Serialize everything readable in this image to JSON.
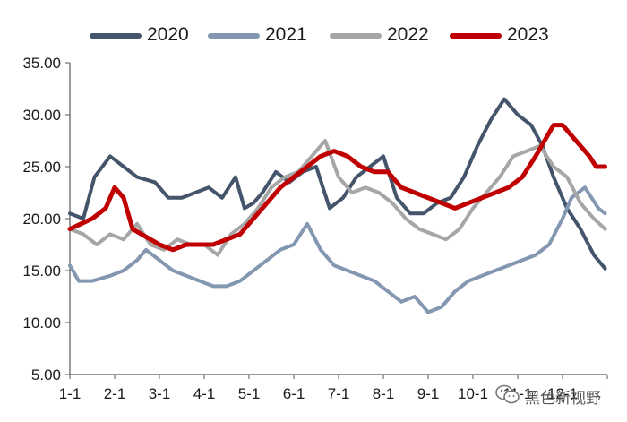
{
  "chart_data": {
    "type": "line",
    "title": "",
    "xlabel": "",
    "ylabel": "",
    "ylim": [
      5,
      35
    ],
    "yticks": [
      "5.00",
      "10.00",
      "15.00",
      "20.00",
      "25.00",
      "30.00",
      "35.00"
    ],
    "yticks_values": [
      5,
      10,
      15,
      20,
      25,
      30,
      35
    ],
    "xlim": [
      0,
      12
    ],
    "categories": [
      "1-1",
      "2-1",
      "3-1",
      "4-1",
      "5-1",
      "6-1",
      "7-1",
      "8-1",
      "9-1",
      "10-1",
      "11-1",
      "12-1"
    ],
    "legend_position": "top",
    "grid": false,
    "series": [
      {
        "name": "2020",
        "color": "#44546a",
        "x": [
          0,
          0.3,
          0.55,
          0.9,
          1.2,
          1.5,
          1.9,
          2.2,
          2.5,
          2.8,
          3.1,
          3.4,
          3.7,
          3.9,
          4.1,
          4.3,
          4.6,
          4.9,
          5.2,
          5.5,
          5.8,
          6.1,
          6.4,
          6.7,
          7.0,
          7.3,
          7.6,
          7.9,
          8.2,
          8.5,
          8.8,
          9.1,
          9.4,
          9.7,
          10.0,
          10.3,
          10.55,
          10.8,
          11.1,
          11.4,
          11.7,
          11.95
        ],
        "y": [
          20.5,
          20,
          24,
          26,
          25,
          24,
          23.5,
          22,
          22,
          22.5,
          23,
          22,
          24,
          21,
          21.5,
          22.5,
          24.5,
          23.5,
          24.5,
          25,
          21,
          22,
          24,
          25,
          26,
          22,
          20.5,
          20.5,
          21.5,
          22,
          24,
          27,
          29.5,
          31.5,
          30,
          29,
          27,
          24,
          21,
          19,
          16.5,
          15.2
        ]
      },
      {
        "name": "2021",
        "color": "#8497b0",
        "x": [
          0,
          0.2,
          0.5,
          0.9,
          1.2,
          1.5,
          1.7,
          2.0,
          2.3,
          2.6,
          2.9,
          3.2,
          3.5,
          3.8,
          4.1,
          4.4,
          4.7,
          5.0,
          5.3,
          5.6,
          5.9,
          6.2,
          6.5,
          6.8,
          7.1,
          7.4,
          7.7,
          8.0,
          8.3,
          8.6,
          8.9,
          9.2,
          9.5,
          9.8,
          10.1,
          10.4,
          10.7,
          11.0,
          11.2,
          11.5,
          11.8,
          11.95
        ],
        "y": [
          15.5,
          14,
          14,
          14.5,
          15,
          16,
          17,
          16,
          15,
          14.5,
          14,
          13.5,
          13.5,
          14,
          15,
          16,
          17,
          17.5,
          19.5,
          17,
          15.5,
          15,
          14.5,
          14,
          13,
          12,
          12.5,
          11,
          11.5,
          13,
          14,
          14.5,
          15,
          15.5,
          16,
          16.5,
          17.5,
          20,
          22,
          23,
          21,
          20.5
        ]
      },
      {
        "name": "2022",
        "color": "#a6a6a6",
        "x": [
          0,
          0.3,
          0.6,
          0.9,
          1.2,
          1.5,
          1.8,
          2.1,
          2.4,
          2.7,
          3.0,
          3.3,
          3.6,
          3.9,
          4.2,
          4.5,
          4.8,
          5.1,
          5.4,
          5.7,
          6.0,
          6.3,
          6.6,
          6.9,
          7.2,
          7.5,
          7.8,
          8.1,
          8.4,
          8.7,
          9.0,
          9.3,
          9.6,
          9.9,
          10.2,
          10.5,
          10.8,
          11.1,
          11.4,
          11.7,
          11.95
        ],
        "y": [
          19,
          18.5,
          17.5,
          18.5,
          18,
          19.5,
          17.5,
          17,
          18,
          17.5,
          17.5,
          16.5,
          18.5,
          19.5,
          21,
          23,
          24,
          24.5,
          26,
          27.5,
          24,
          22.5,
          23,
          22.5,
          21.5,
          20,
          19,
          18.5,
          18,
          19,
          21,
          22.5,
          24,
          26,
          26.5,
          27,
          25,
          24,
          21.5,
          20,
          19
        ]
      },
      {
        "name": "2023",
        "color": "#c00000",
        "x": [
          0,
          0.25,
          0.5,
          0.8,
          1.0,
          1.2,
          1.4,
          1.6,
          1.8,
          2.0,
          2.3,
          2.6,
          2.9,
          3.2,
          3.5,
          3.8,
          4.1,
          4.4,
          4.7,
          5.0,
          5.3,
          5.6,
          5.9,
          6.2,
          6.5,
          6.8,
          7.1,
          7.4,
          7.7,
          8.0,
          8.3,
          8.6,
          8.9,
          9.2,
          9.5,
          9.8,
          10.1,
          10.4,
          10.6,
          10.8,
          11.0,
          11.2,
          11.4,
          11.6,
          11.75,
          11.95
        ],
        "y": [
          19,
          19.5,
          20,
          21,
          23,
          22,
          19,
          18.5,
          18,
          17.5,
          17,
          17.5,
          17.5,
          17.5,
          18,
          18.5,
          20,
          21.5,
          23,
          24,
          25,
          26,
          26.5,
          26,
          25,
          24.5,
          24.5,
          23,
          22.5,
          22,
          21.5,
          21,
          21.5,
          22,
          22.5,
          23,
          24,
          26,
          27.5,
          29,
          29,
          28,
          27,
          26,
          25,
          25
        ]
      }
    ]
  },
  "legend": {
    "items": [
      {
        "label": "2020",
        "color": "#44546a"
      },
      {
        "label": "2021",
        "color": "#8497b0"
      },
      {
        "label": "2022",
        "color": "#a6a6a6"
      },
      {
        "label": "2023",
        "color": "#c00000"
      }
    ]
  },
  "watermark": {
    "text": "黑色新视野",
    "icon": "wechat-icon"
  }
}
